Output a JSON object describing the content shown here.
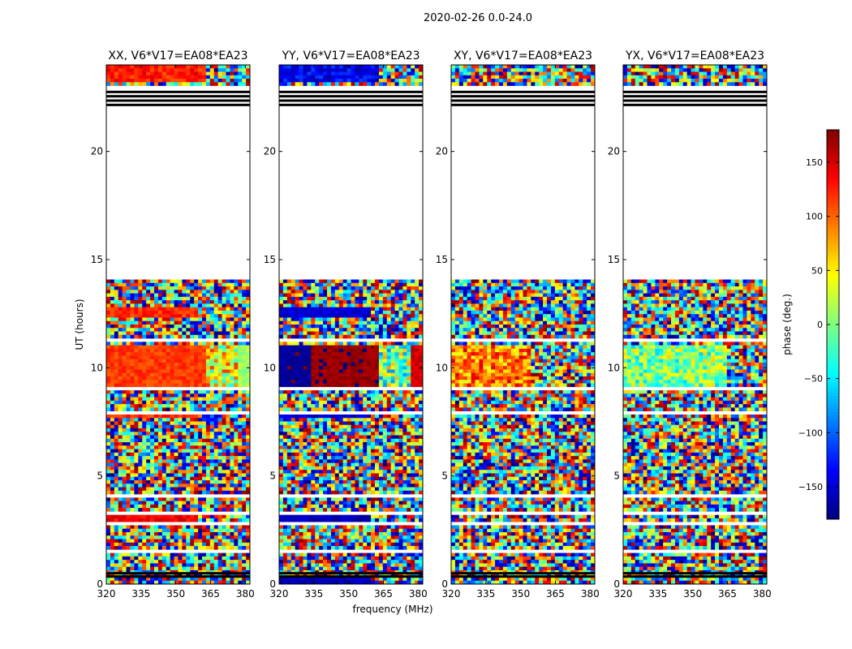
{
  "suptitle": "2020-02-26 0.0-24.0",
  "chart_data": {
    "type": "heatmap",
    "xlabel": "frequency (MHz)",
    "ylabel": "UT (hours)",
    "xlim": [
      320,
      382
    ],
    "ylim": [
      0,
      24
    ],
    "xticks": [
      320,
      335,
      350,
      365,
      380
    ],
    "yticks": [
      0,
      5,
      10,
      15,
      20
    ],
    "colorbar": {
      "label": "phase (deg.)",
      "range": [
        -180,
        180
      ],
      "ticks": [
        -150,
        -100,
        -50,
        0,
        50,
        100,
        150
      ],
      "tick_labels": [
        "−150",
        "−100",
        "−50",
        "0",
        "50",
        "100",
        "150"
      ],
      "colormap": "jet"
    },
    "panels": [
      {
        "title": "XX, V6*V17=EA08*EA23",
        "coherent_segments": [
          {
            "t": [
              9.2,
              11.0
            ],
            "f": [
              320,
              363
            ],
            "phase": 115,
            "spread": 30
          },
          {
            "t": [
              9.2,
              11.0
            ],
            "f": [
              363,
              376
            ],
            "phase": 40,
            "spread": 160
          },
          {
            "t": [
              9.2,
              11.0
            ],
            "f": [
              376,
              382
            ],
            "phase": 10,
            "spread": 30
          },
          {
            "t": [
              23.2,
              24.0
            ],
            "f": [
              320,
              363
            ],
            "phase": 125,
            "spread": 45
          },
          {
            "t": [
              12.4,
              12.8
            ],
            "f": [
              320,
              360
            ],
            "phase": 120,
            "spread": 35
          },
          {
            "t": [
              7.7,
              7.9
            ],
            "f": [
              320,
              360
            ],
            "phase": 120,
            "spread": 35
          },
          {
            "t": [
              2.9,
              3.2
            ],
            "f": [
              320,
              360
            ],
            "phase": 140,
            "spread": 35
          }
        ]
      },
      {
        "title": "YY, V6*V17=EA08*EA23",
        "coherent_segments": [
          {
            "t": [
              9.2,
              11.0
            ],
            "f": [
              320,
              334
            ],
            "phase": -172,
            "spread": 18
          },
          {
            "t": [
              9.2,
              11.0
            ],
            "f": [
              334,
              363
            ],
            "phase": 172,
            "spread": 22
          },
          {
            "t": [
              9.2,
              11.0
            ],
            "f": [
              363,
              376
            ],
            "phase": 0,
            "spread": 170
          },
          {
            "t": [
              9.2,
              11.0
            ],
            "f": [
              376,
              382
            ],
            "phase": 150,
            "spread": 25
          },
          {
            "t": [
              23.2,
              24.0
            ],
            "f": [
              320,
              363
            ],
            "phase": -140,
            "spread": 60
          },
          {
            "t": [
              12.4,
              12.8
            ],
            "f": [
              320,
              360
            ],
            "phase": -150,
            "spread": 30
          },
          {
            "t": [
              7.7,
              7.9
            ],
            "f": [
              320,
              360
            ],
            "phase": -150,
            "spread": 30
          },
          {
            "t": [
              2.9,
              3.2
            ],
            "f": [
              320,
              360
            ],
            "phase": -160,
            "spread": 30
          },
          {
            "t": [
              0.0,
              0.3
            ],
            "f": [
              320,
              360
            ],
            "phase": -160,
            "spread": 30
          }
        ]
      },
      {
        "title": "XY, V6*V17=EA08*EA23",
        "coherent_segments": [
          {
            "t": [
              9.2,
              11.0
            ],
            "f": [
              320,
              355
            ],
            "phase": 90,
            "spread": 120
          }
        ]
      },
      {
        "title": "YX, V6*V17=EA08*EA23",
        "coherent_segments": [
          {
            "t": [
              9.2,
              11.0
            ],
            "f": [
              320,
              365
            ],
            "phase": 0,
            "spread": 120
          }
        ]
      }
    ],
    "flagged_time_ranges": [
      [
        22.05,
        23.1
      ],
      [
        14.05,
        22.05
      ],
      [
        12.3,
        12.4
      ],
      [
        11.15,
        11.3
      ],
      [
        9.0,
        9.15
      ],
      [
        7.9,
        8.05
      ],
      [
        6.85,
        6.95
      ],
      [
        4.0,
        4.1
      ],
      [
        3.25,
        3.35
      ],
      [
        2.8,
        2.9
      ],
      [
        1.45,
        1.55
      ],
      [
        0.3,
        0.4
      ]
    ],
    "flag_black_lines": [
      22.15,
      22.35,
      22.55,
      22.75,
      0.35,
      0.5
    ]
  }
}
